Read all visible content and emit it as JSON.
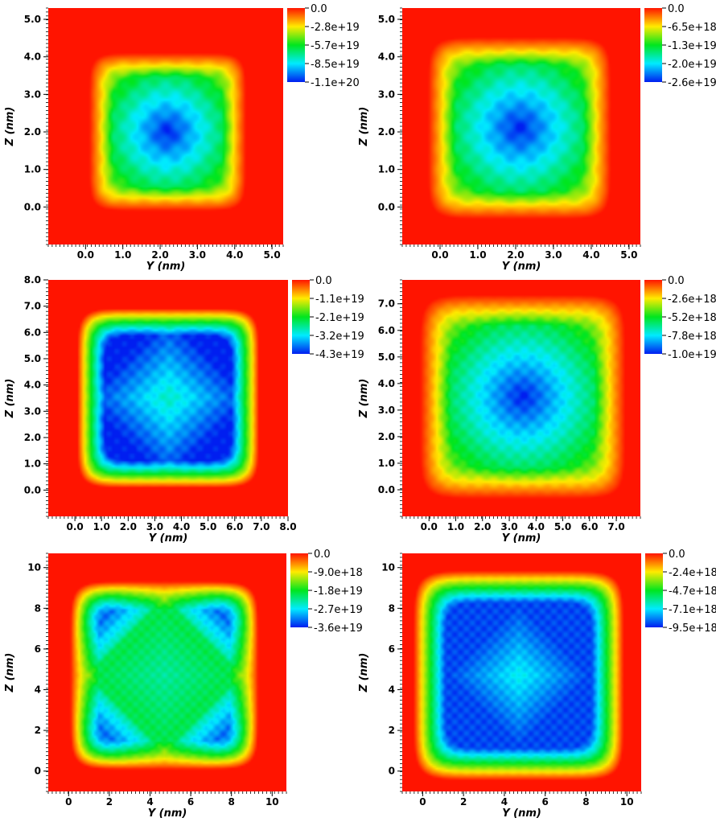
{
  "chart_data": [
    {
      "type": "heatmap",
      "pattern": "single-center",
      "xlabel": "Y (nm)",
      "ylabel": "Z (nm)",
      "xrange": [
        -1.0,
        5.3
      ],
      "yrange": [
        -1.0,
        5.3
      ],
      "xticks": [
        "0.0",
        "1.0",
        "2.0",
        "3.0",
        "4.0",
        "5.0"
      ],
      "yticks": [
        "0.0",
        "1.0",
        "2.0",
        "3.0",
        "4.0",
        "5.0"
      ],
      "well": [
        0.3,
        4.3
      ],
      "center": [
        2.2,
        2.0
      ],
      "colorbar": {
        "min": -1.1e+20,
        "max": 0.0,
        "ticks": [
          "0.0",
          "-2.8e+19",
          "-5.7e+19",
          "-8.5e+19",
          "-1.1e+20"
        ]
      }
    },
    {
      "type": "heatmap",
      "pattern": "single-center",
      "xlabel": "Y (nm)",
      "ylabel": "Z (nm)",
      "xrange": [
        -1.0,
        5.3
      ],
      "yrange": [
        -1.0,
        5.3
      ],
      "xticks": [
        "0.0",
        "1.0",
        "2.0",
        "3.0",
        "4.0",
        "5.0"
      ],
      "yticks": [
        "0.0",
        "1.0",
        "2.0",
        "3.0",
        "4.0",
        "5.0"
      ],
      "well": [
        -0.1,
        4.5
      ],
      "center": [
        2.1,
        2.1
      ],
      "colorbar": {
        "min": -2.6e+19,
        "max": 0.0,
        "ticks": [
          "0.0",
          "-6.5e+18",
          "-1.3e+19",
          "-2.0e+19",
          "-2.6e+19"
        ]
      }
    },
    {
      "type": "heatmap",
      "pattern": "square-shell",
      "xlabel": "Y (nm)",
      "ylabel": "Z (nm)",
      "xrange": [
        -1.0,
        8.0
      ],
      "yrange": [
        -1.0,
        8.0
      ],
      "xticks": [
        "0.0",
        "1.0",
        "2.0",
        "3.0",
        "4.0",
        "5.0",
        "6.0",
        "7.0",
        "8.0"
      ],
      "yticks": [
        "0.0",
        "1.0",
        "2.0",
        "3.0",
        "4.0",
        "5.0",
        "6.0",
        "7.0",
        "8.0"
      ],
      "well": [
        0.3,
        6.8
      ],
      "center": [
        3.5,
        3.5
      ],
      "colorbar": {
        "min": -4.3e+19,
        "max": 0.0,
        "ticks": [
          "0.0",
          "-1.1e+19",
          "-2.1e+19",
          "-3.2e+19",
          "-4.3e+19"
        ]
      }
    },
    {
      "type": "heatmap",
      "pattern": "single-center",
      "xlabel": "Y (nm)",
      "ylabel": "Z (nm)",
      "xrange": [
        -1.0,
        7.9
      ],
      "yrange": [
        -1.0,
        7.9
      ],
      "xticks": [
        "0.0",
        "1.0",
        "2.0",
        "3.0",
        "4.0",
        "5.0",
        "6.0",
        "7.0"
      ],
      "yticks": [
        "0.0",
        "1.0",
        "2.0",
        "3.0",
        "4.0",
        "5.0",
        "6.0",
        "7.0"
      ],
      "well": [
        -0.1,
        7.2
      ],
      "center": [
        3.5,
        3.5
      ],
      "colorbar": {
        "min": -1e+19,
        "max": 0.0,
        "ticks": [
          "0.0",
          "-2.6e+18",
          "-5.2e+18",
          "-7.8e+18",
          "-1.0e+19"
        ]
      }
    },
    {
      "type": "heatmap",
      "pattern": "four-corners",
      "xlabel": "Y (nm)",
      "ylabel": "Z (nm)",
      "xrange": [
        -1.0,
        10.7
      ],
      "yrange": [
        -1.0,
        10.7
      ],
      "xticks": [
        "0",
        "2",
        "4",
        "6",
        "8",
        "10"
      ],
      "yticks": [
        "0",
        "2",
        "4",
        "6",
        "8",
        "10"
      ],
      "well": [
        0.3,
        9.1
      ],
      "center": [
        4.7,
        4.7
      ],
      "colorbar": {
        "min": -3.6e+19,
        "max": 0.0,
        "ticks": [
          "0.0",
          "-9.0e+18",
          "-1.8e+19",
          "-2.7e+19",
          "-3.6e+19"
        ]
      }
    },
    {
      "type": "heatmap",
      "pattern": "ring-center",
      "xlabel": "Y (nm)",
      "ylabel": "Z (nm)",
      "xrange": [
        -1.0,
        10.7
      ],
      "yrange": [
        -1.0,
        10.7
      ],
      "xticks": [
        "0",
        "2",
        "4",
        "6",
        "8",
        "10"
      ],
      "yticks": [
        "0",
        "2",
        "4",
        "6",
        "8",
        "10"
      ],
      "well": [
        -0.2,
        9.6
      ],
      "center": [
        4.7,
        4.7
      ],
      "colorbar": {
        "min": -9.5e+18,
        "max": 0.0,
        "ticks": [
          "0.0",
          "-2.4e+18",
          "-4.7e+18",
          "-7.1e+18",
          "-9.5e+18"
        ]
      }
    }
  ]
}
